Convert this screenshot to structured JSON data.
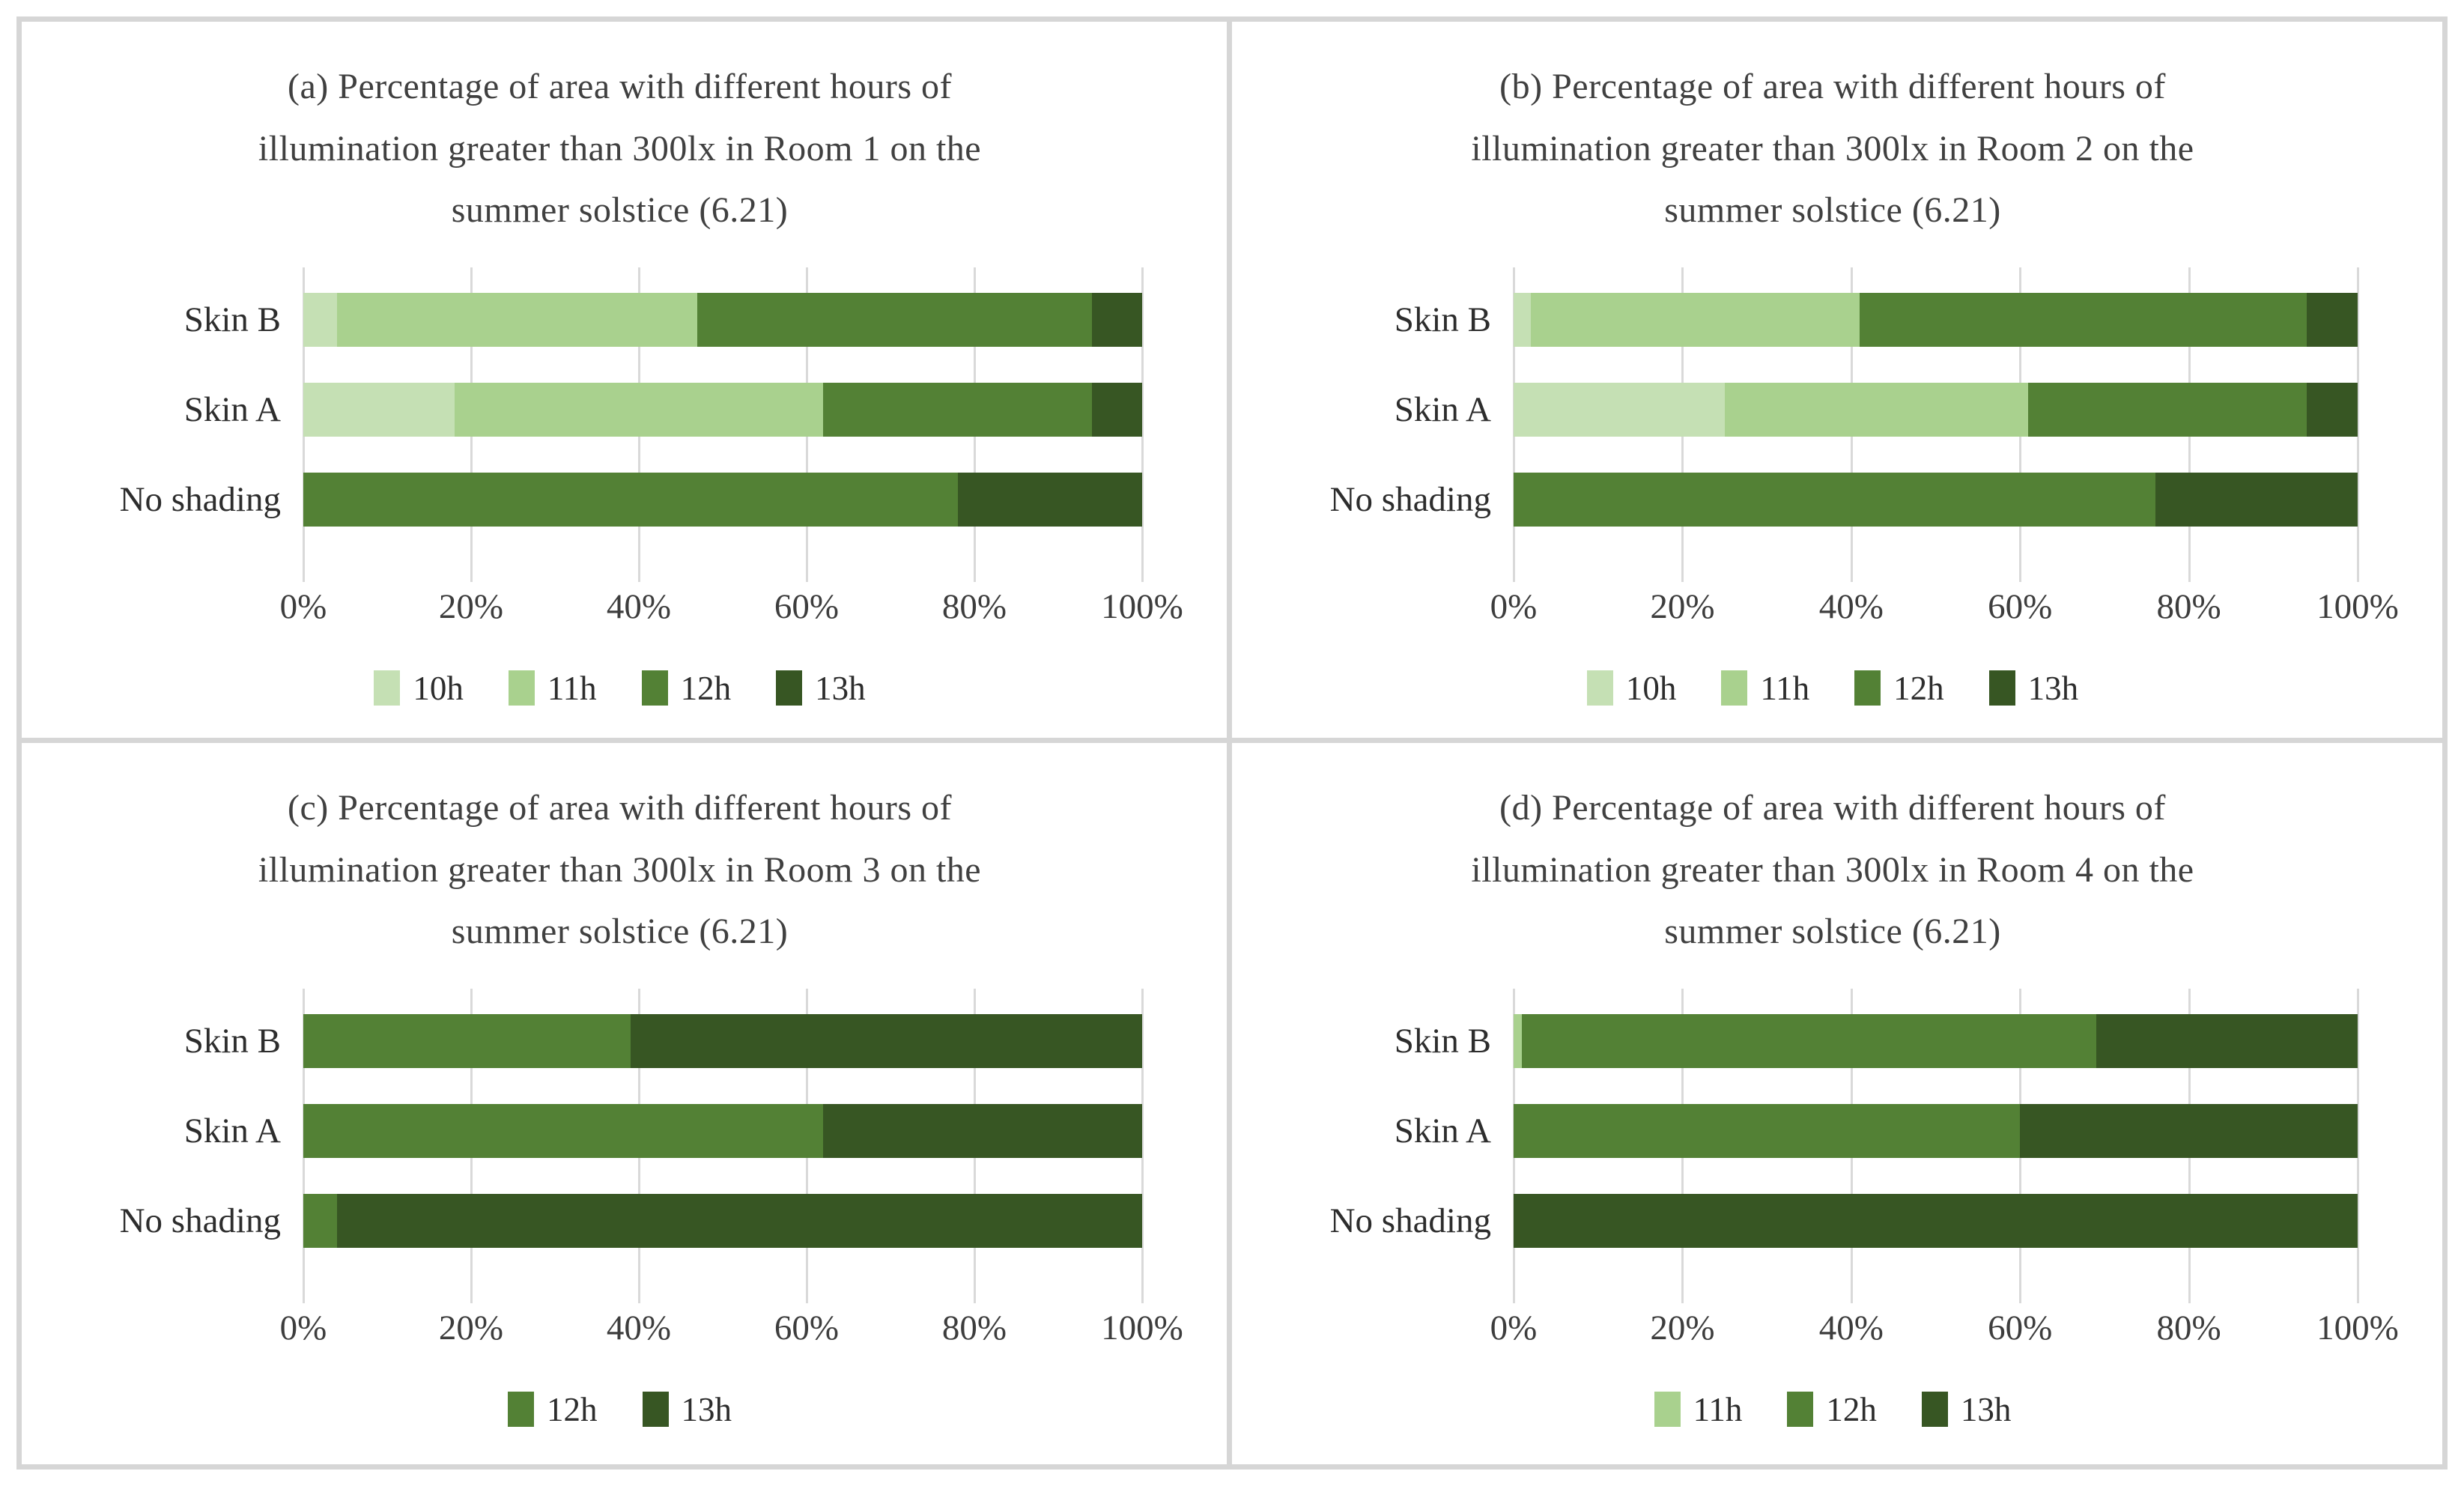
{
  "figure": {
    "background": "#ffffff",
    "frame_border_color": "#d6d6d6",
    "gridline_color": "#d9d9d9",
    "title_color": "#404040",
    "label_color": "#2d2d2d"
  },
  "palette": {
    "10h": "#c5e0b4",
    "11h": "#a9d18e",
    "12h": "#538135",
    "13h": "#375623"
  },
  "chart_data": [
    {
      "type": "bar",
      "stacked": true,
      "orientation": "horizontal",
      "title": "(a) Percentage of area with different hours of illumination greater than 300lx in Room 1 on the summer solstice (6.21)",
      "categories": [
        "Skin B",
        "Skin A",
        "No shading"
      ],
      "series": [
        {
          "name": "10h",
          "values": [
            4,
            18,
            0
          ]
        },
        {
          "name": "11h",
          "values": [
            43,
            44,
            0
          ]
        },
        {
          "name": "12h",
          "values": [
            47,
            32,
            78
          ]
        },
        {
          "name": "13h",
          "values": [
            6,
            6,
            22
          ]
        }
      ],
      "xlim": [
        0,
        100
      ],
      "x_ticks": [
        "0%",
        "20%",
        "40%",
        "60%",
        "80%",
        "100%"
      ],
      "grid": true,
      "legend": [
        "10h",
        "11h",
        "12h",
        "13h"
      ],
      "legend_position": "bottom"
    },
    {
      "type": "bar",
      "stacked": true,
      "orientation": "horizontal",
      "title": "(b) Percentage of area with different hours of illumination greater than 300lx in Room 2 on the summer solstice (6.21)",
      "categories": [
        "Skin B",
        "Skin A",
        "No shading"
      ],
      "series": [
        {
          "name": "10h",
          "values": [
            2,
            25,
            0
          ]
        },
        {
          "name": "11h",
          "values": [
            39,
            36,
            0
          ]
        },
        {
          "name": "12h",
          "values": [
            53,
            33,
            76
          ]
        },
        {
          "name": "13h",
          "values": [
            6,
            6,
            24
          ]
        }
      ],
      "xlim": [
        0,
        100
      ],
      "x_ticks": [
        "0%",
        "20%",
        "40%",
        "60%",
        "80%",
        "100%"
      ],
      "grid": true,
      "legend": [
        "10h",
        "11h",
        "12h",
        "13h"
      ],
      "legend_position": "bottom"
    },
    {
      "type": "bar",
      "stacked": true,
      "orientation": "horizontal",
      "title": "(c) Percentage of area with different hours of illumination greater than 300lx in Room 3 on the summer solstice (6.21)",
      "categories": [
        "Skin B",
        "Skin A",
        "No shading"
      ],
      "series": [
        {
          "name": "12h",
          "values": [
            39,
            62,
            4
          ]
        },
        {
          "name": "13h",
          "values": [
            61,
            38,
            96
          ]
        }
      ],
      "xlim": [
        0,
        100
      ],
      "x_ticks": [
        "0%",
        "20%",
        "40%",
        "60%",
        "80%",
        "100%"
      ],
      "grid": true,
      "legend": [
        "12h",
        "13h"
      ],
      "legend_position": "bottom"
    },
    {
      "type": "bar",
      "stacked": true,
      "orientation": "horizontal",
      "title": "(d) Percentage of area with different hours of illumination greater than 300lx in Room 4 on the summer solstice (6.21)",
      "categories": [
        "Skin B",
        "Skin A",
        "No shading"
      ],
      "series": [
        {
          "name": "11h",
          "values": [
            1,
            0,
            0
          ]
        },
        {
          "name": "12h",
          "values": [
            68,
            60,
            0
          ]
        },
        {
          "name": "13h",
          "values": [
            31,
            40,
            100
          ]
        }
      ],
      "xlim": [
        0,
        100
      ],
      "x_ticks": [
        "0%",
        "20%",
        "40%",
        "60%",
        "80%",
        "100%"
      ],
      "grid": true,
      "legend": [
        "11h",
        "12h",
        "13h"
      ],
      "legend_position": "bottom"
    }
  ]
}
